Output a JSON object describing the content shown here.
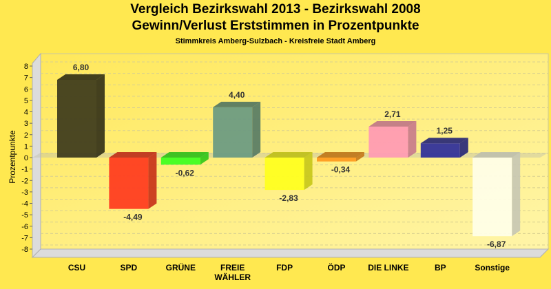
{
  "chart_data": {
    "type": "bar",
    "title": "Vergleich Bezirkswahl 2013 - Bezirkswahl 2008",
    "subtitle": "Gewinn/Verlust Erststimmen in Prozentpunkte",
    "subtitle2": "Stimmkreis Amberg-Sulzbach - Kreisfreie Stadt Amberg",
    "xlabel": "",
    "ylabel": "Prozentpunkte",
    "ylim": [
      -8,
      8
    ],
    "yticks": [
      8,
      7,
      6,
      5,
      4,
      3,
      2,
      1,
      0,
      -1,
      -2,
      -3,
      -4,
      -5,
      -6,
      -7,
      -8
    ],
    "grid": true,
    "style": "3d",
    "categories": [
      "CSU",
      "SPD",
      "GRÜNE",
      "FREIE WÄHLER",
      "FDP",
      "ÖDP",
      "DIE LINKE",
      "BP",
      "Sonstige"
    ],
    "category_lines": [
      [
        "CSU"
      ],
      [
        "SPD"
      ],
      [
        "GRÜNE"
      ],
      [
        "FREIE",
        "WÄHLER"
      ],
      [
        "FDP"
      ],
      [
        "ÖDP"
      ],
      [
        "DIE LINKE"
      ],
      [
        "BP"
      ],
      [
        "Sonstige"
      ]
    ],
    "values": [
      6.8,
      -4.49,
      -0.62,
      4.4,
      -2.83,
      -0.34,
      2.71,
      1.25,
      -6.87
    ],
    "data_labels": [
      "6,80",
      "-4,49",
      "-0,62",
      "4,40",
      "-2,83",
      "-0,34",
      "2,71",
      "1,25",
      "-6,87"
    ],
    "colors": [
      "#3d3a1c",
      "#ff3a1e",
      "#3cff1e",
      "#6a9a82",
      "#ffff1e",
      "#ff9a1e",
      "#ff9ab4",
      "#2e2e9a",
      "#fffee8"
    ]
  }
}
